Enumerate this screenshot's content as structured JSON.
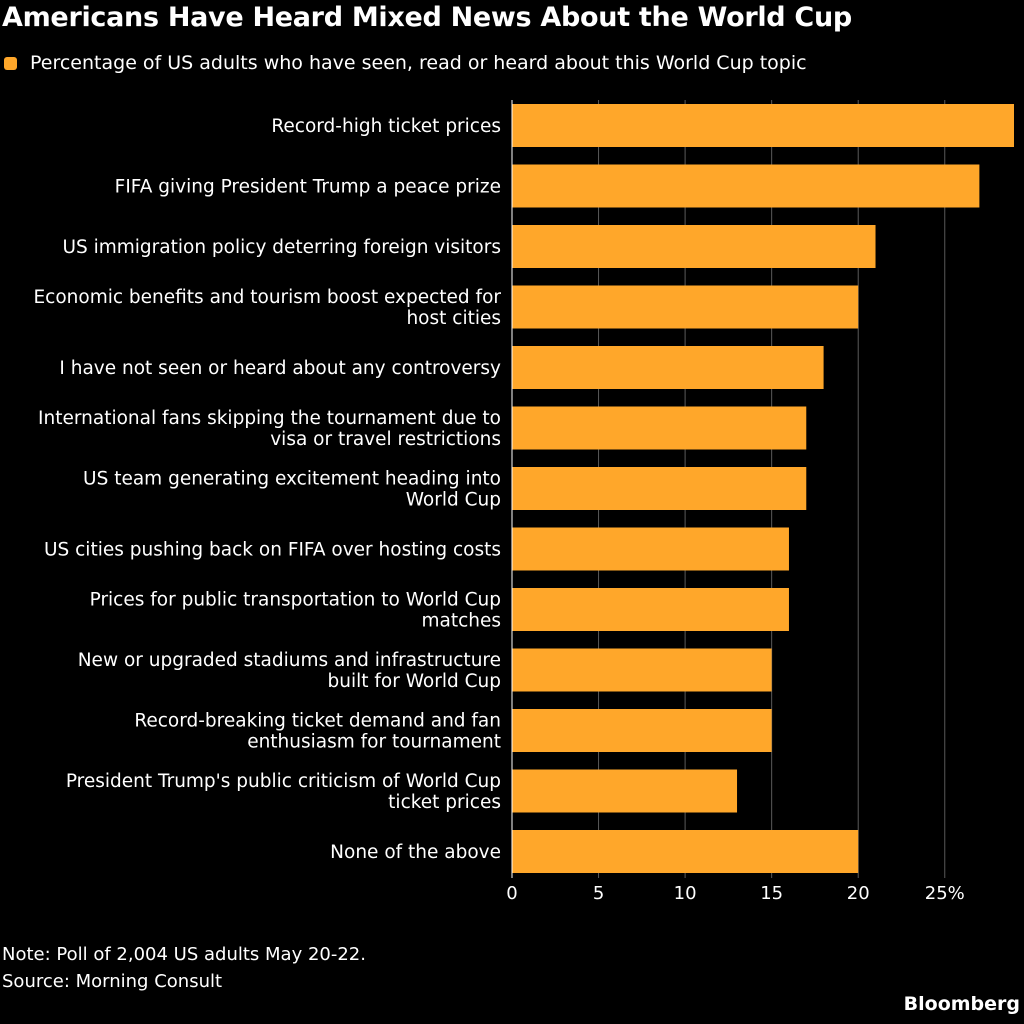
{
  "chart_data": {
    "type": "bar",
    "orientation": "horizontal",
    "title": "Americans Have Heard Mixed News About the World Cup",
    "legend": {
      "position": "top-left",
      "entries": [
        "Percentage of US adults who have seen, read or heard about this World Cup topic"
      ]
    },
    "series": [
      {
        "name": "Percentage of US adults who have seen, read or heard about this World Cup topic",
        "color": "#FFA72A"
      }
    ],
    "categories": [
      [
        "Record-high ticket prices"
      ],
      [
        "FIFA giving President Trump a peace prize"
      ],
      [
        "US immigration policy deterring foreign visitors"
      ],
      [
        "Economic benefits and tourism boost expected for",
        "host cities"
      ],
      [
        "I have not seen or heard about any controversy"
      ],
      [
        "International fans skipping the tournament due to",
        "visa or travel restrictions"
      ],
      [
        "US team generating excitement heading into",
        "World Cup"
      ],
      [
        "US cities pushing back on FIFA over hosting costs"
      ],
      [
        "Prices for public transportation to World Cup",
        "matches"
      ],
      [
        "New or upgraded stadiums and infrastructure",
        "built for World Cup"
      ],
      [
        "Record-breaking ticket demand and fan",
        "enthusiasm for tournament"
      ],
      [
        "President Trump's public criticism of World Cup",
        "ticket prices"
      ],
      [
        "None of the above"
      ]
    ],
    "values": [
      29,
      27,
      21,
      20,
      18,
      17,
      17,
      16,
      16,
      15,
      15,
      13,
      20
    ],
    "xlim": [
      0,
      29
    ],
    "xticks": [
      0,
      5,
      10,
      15,
      20,
      25
    ],
    "xtick_labels": [
      "0",
      "5",
      "10",
      "15",
      "20",
      "25%"
    ],
    "grid": true
  },
  "note": "Note: Poll of 2,004 US adults May 20-22.",
  "source": "Source: Morning Consult",
  "brand": "Bloomberg",
  "colors": {
    "background": "#000000",
    "bar": "#FFA72A",
    "grid": "#5a5a5a",
    "text": "#FFFFFF"
  }
}
